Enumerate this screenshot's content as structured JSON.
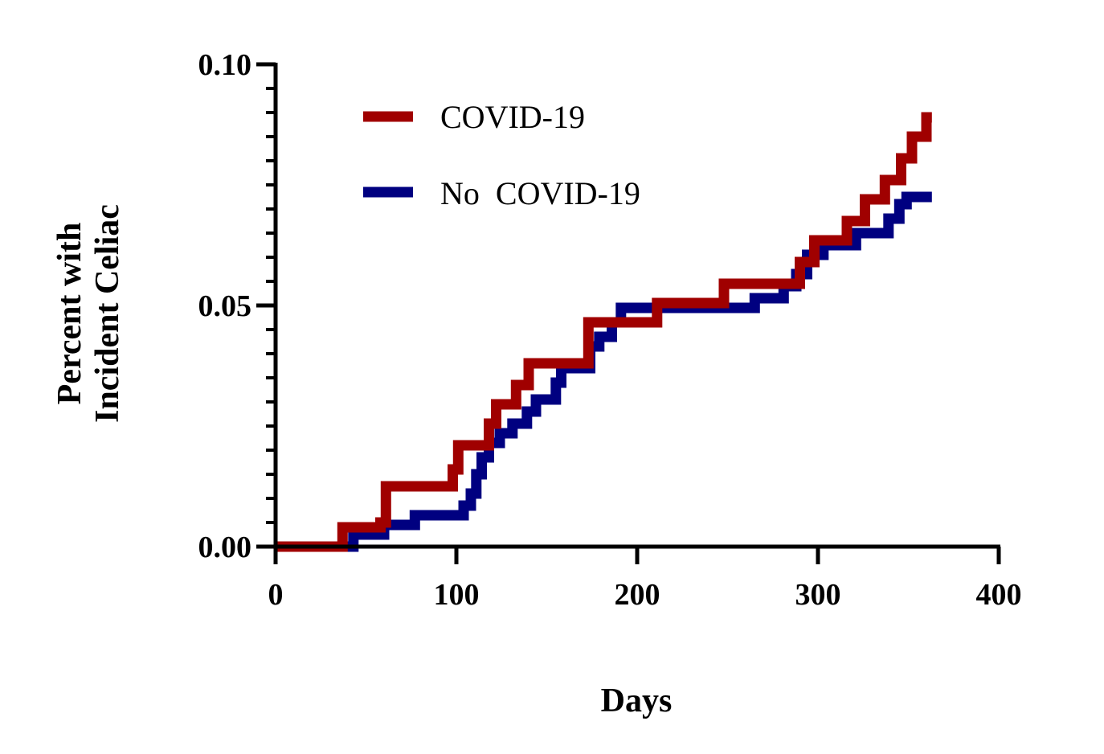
{
  "chart_data": {
    "type": "line",
    "step": true,
    "title": "",
    "xlabel": "Days",
    "ylabel_lines": [
      "Percent with",
      "Incident Celiac"
    ],
    "xlim": [
      0,
      400
    ],
    "ylim": [
      0,
      0.1
    ],
    "xticks": [
      0,
      100,
      200,
      300,
      400
    ],
    "xtick_labels": [
      "0",
      "100",
      "200",
      "300",
      "400"
    ],
    "yticks": [
      0.0,
      0.05,
      0.1
    ],
    "ytick_labels": [
      "0.00",
      "0.05",
      "0.10"
    ],
    "grid": false,
    "legend_position": "top-left",
    "series": [
      {
        "name": "COVID-19",
        "color": "#a00000",
        "points": [
          [
            0,
            0.0
          ],
          [
            37,
            0.0
          ],
          [
            37,
            0.004
          ],
          [
            58,
            0.004
          ],
          [
            58,
            0.005
          ],
          [
            61,
            0.005
          ],
          [
            61,
            0.0125
          ],
          [
            98,
            0.0125
          ],
          [
            98,
            0.016
          ],
          [
            101,
            0.016
          ],
          [
            101,
            0.021
          ],
          [
            118,
            0.021
          ],
          [
            118,
            0.0255
          ],
          [
            122,
            0.0255
          ],
          [
            122,
            0.0295
          ],
          [
            133,
            0.0295
          ],
          [
            133,
            0.0335
          ],
          [
            140,
            0.0335
          ],
          [
            140,
            0.038
          ],
          [
            173,
            0.038
          ],
          [
            173,
            0.0465
          ],
          [
            211,
            0.0465
          ],
          [
            211,
            0.0505
          ],
          [
            248,
            0.0505
          ],
          [
            248,
            0.0545
          ],
          [
            290,
            0.0545
          ],
          [
            290,
            0.059
          ],
          [
            298,
            0.059
          ],
          [
            298,
            0.0635
          ],
          [
            316,
            0.0635
          ],
          [
            316,
            0.0675
          ],
          [
            326,
            0.0675
          ],
          [
            326,
            0.072
          ],
          [
            337,
            0.072
          ],
          [
            337,
            0.076
          ],
          [
            346,
            0.076
          ],
          [
            346,
            0.0805
          ],
          [
            352,
            0.0805
          ],
          [
            352,
            0.085
          ],
          [
            360,
            0.085
          ],
          [
            360,
            0.089
          ],
          [
            363,
            0.089
          ]
        ]
      },
      {
        "name": "No  COVID-19",
        "color": "#000080",
        "points": [
          [
            0,
            0.0
          ],
          [
            43,
            0.0
          ],
          [
            43,
            0.0025
          ],
          [
            60,
            0.0025
          ],
          [
            60,
            0.0045
          ],
          [
            77,
            0.0045
          ],
          [
            77,
            0.0065
          ],
          [
            104,
            0.0065
          ],
          [
            104,
            0.0085
          ],
          [
            108,
            0.0085
          ],
          [
            108,
            0.011
          ],
          [
            111,
            0.011
          ],
          [
            111,
            0.015
          ],
          [
            114,
            0.015
          ],
          [
            114,
            0.0185
          ],
          [
            118,
            0.0185
          ],
          [
            118,
            0.0215
          ],
          [
            124,
            0.0215
          ],
          [
            124,
            0.0235
          ],
          [
            131,
            0.0235
          ],
          [
            131,
            0.0255
          ],
          [
            139,
            0.0255
          ],
          [
            139,
            0.028
          ],
          [
            144,
            0.028
          ],
          [
            144,
            0.0305
          ],
          [
            155,
            0.0305
          ],
          [
            155,
            0.034
          ],
          [
            158,
            0.034
          ],
          [
            158,
            0.037
          ],
          [
            174,
            0.037
          ],
          [
            174,
            0.0415
          ],
          [
            179,
            0.0415
          ],
          [
            179,
            0.0435
          ],
          [
            186,
            0.0435
          ],
          [
            186,
            0.0465
          ],
          [
            191,
            0.0465
          ],
          [
            191,
            0.0495
          ],
          [
            265,
            0.0495
          ],
          [
            265,
            0.0515
          ],
          [
            281,
            0.0515
          ],
          [
            281,
            0.054
          ],
          [
            288,
            0.054
          ],
          [
            288,
            0.0565
          ],
          [
            294,
            0.0565
          ],
          [
            294,
            0.0605
          ],
          [
            303,
            0.0605
          ],
          [
            303,
            0.0625
          ],
          [
            321,
            0.0625
          ],
          [
            321,
            0.065
          ],
          [
            339,
            0.065
          ],
          [
            339,
            0.068
          ],
          [
            345,
            0.068
          ],
          [
            345,
            0.071
          ],
          [
            349,
            0.071
          ],
          [
            349,
            0.0725
          ],
          [
            363,
            0.0725
          ]
        ]
      }
    ]
  }
}
